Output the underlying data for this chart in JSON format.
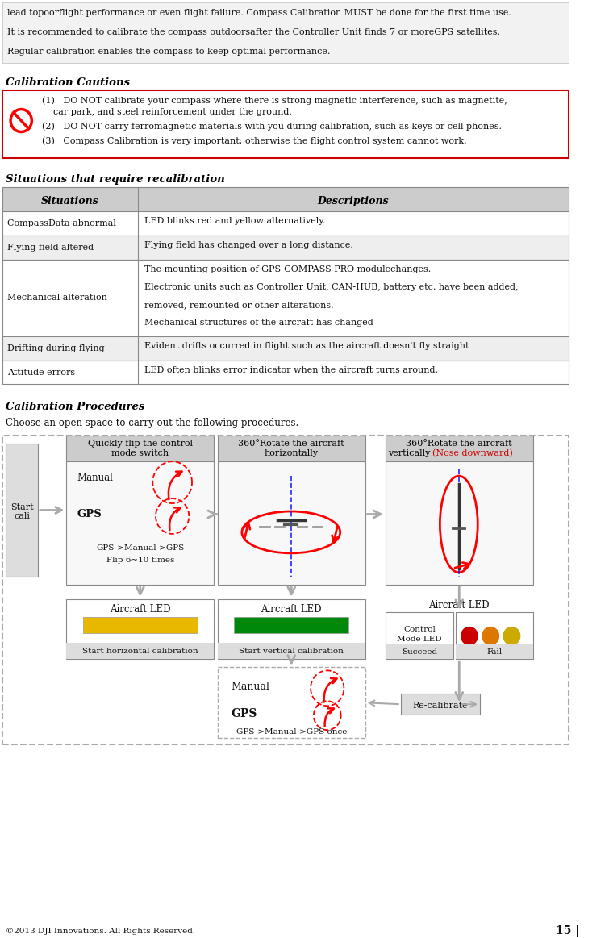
{
  "bg_color": "#ffffff",
  "intro_text": [
    "lead topoorflight performance or even flight failure. Compass Calibration MUST be done for the first time use.",
    "It is recommended to calibrate the compass outdoorsafter the Controller Unit finds 7 or moreGPS satellites.",
    "Regular calibration enables the compass to keep optimal performance."
  ],
  "cautions_title": "Calibration Cautions",
  "cautions": [
    [
      "(1)",
      "DO NOT calibrate your compass where there is strong magnetic interference, such as magnetite,"
    ],
    [
      "",
      "car park, and steel reinforcement under the ground."
    ],
    [
      "(2)",
      "DO NOT carry ferromagnetic materials with you during calibration, such as keys or cell phones."
    ],
    [
      "(3)",
      "Compass Calibration is very important; otherwise the flight control system cannot work."
    ]
  ],
  "table_title": "Situations that require recalibration",
  "table_header": [
    "Situations",
    "Descriptions"
  ],
  "table_rows": [
    [
      "CompassData abnormal",
      "LED blinks red and yellow alternatively.",
      false,
      30
    ],
    [
      "Flying field altered",
      "Flying field has changed over a long distance.",
      true,
      30
    ],
    [
      "Mechanical alteration",
      "The mounting position of GPS-COMPASS PRO modulechanges.\nElectronic units such as Controller Unit, CAN-HUB, battery etc. have been added,\nremoved, remounted or other alterations.\nMechanical structures of the aircraft has changed",
      false,
      95
    ],
    [
      "Drifting during flying",
      "Evident drifts occurred in flight such as the aircraft doesn't fly straight",
      true,
      30
    ],
    [
      "Attitude errors",
      "LED often blinks error indicator when the aircraft turns around.",
      false,
      30
    ]
  ],
  "procedures_title": "Calibration Procedures",
  "procedures_text": "Choose an open space to carry out the following procedures.",
  "footer": "©2013 DJI Innovations. All Rights Reserved.",
  "footer_page": "15 |"
}
